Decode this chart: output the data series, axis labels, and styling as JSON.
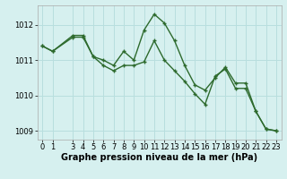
{
  "xlabel": "Graphe pression niveau de la mer (hPa)",
  "x_values": [
    0,
    1,
    3,
    4,
    5,
    6,
    7,
    8,
    9,
    10,
    11,
    12,
    13,
    14,
    15,
    16,
    17,
    18,
    19,
    20,
    21,
    22,
    23
  ],
  "y_values1": [
    1011.4,
    1011.25,
    1011.7,
    1011.7,
    1011.1,
    1011.0,
    1010.85,
    1011.25,
    1011.0,
    1011.85,
    1012.3,
    1012.05,
    1011.55,
    1010.85,
    1010.3,
    1010.15,
    1010.5,
    1010.8,
    1010.35,
    1010.35,
    1009.55,
    1009.05,
    1009.0
  ],
  "y_values2": [
    1011.4,
    1011.25,
    1011.65,
    1011.65,
    1011.1,
    1010.85,
    1010.7,
    1010.85,
    1010.85,
    1010.95,
    1011.55,
    1011.0,
    1010.7,
    1010.4,
    1010.05,
    1009.75,
    1010.55,
    1010.75,
    1010.2,
    1010.2,
    1009.55,
    1009.05,
    1009.0
  ],
  "line_color": "#2d6a2d",
  "bg_color": "#d6f0ef",
  "grid_color": "#b8dede",
  "ylim": [
    1008.75,
    1012.55
  ],
  "yticks": [
    1009,
    1010,
    1011,
    1012
  ],
  "xticks": [
    0,
    1,
    3,
    4,
    5,
    6,
    7,
    8,
    9,
    10,
    11,
    12,
    13,
    14,
    15,
    16,
    17,
    18,
    19,
    20,
    21,
    22,
    23
  ],
  "xlabel_fontsize": 7.0,
  "tick_fontsize": 6.0,
  "marker_size": 3.5,
  "line_width": 1.0
}
